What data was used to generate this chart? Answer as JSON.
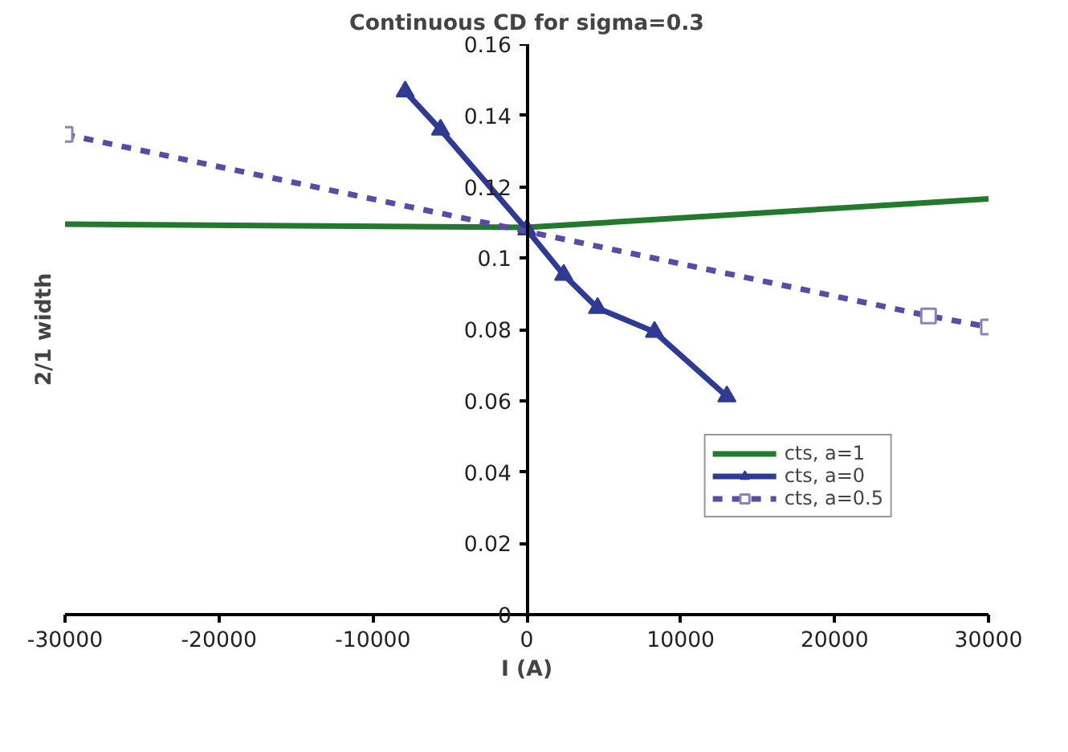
{
  "chart_data": {
    "type": "line",
    "title": "Continuous CD for sigma=0.3",
    "xlabel": "I (A)",
    "ylabel": "2/1 width",
    "xlim": [
      -30000,
      30000
    ],
    "xticks": [
      -30000,
      -20000,
      -10000,
      0,
      10000,
      20000,
      30000
    ],
    "ylim": [
      0,
      0.16
    ],
    "yticks": [
      0,
      0.02,
      0.04,
      0.06,
      0.08,
      0.1,
      0.12,
      0.14,
      0.16
    ],
    "grid": false,
    "legend": "bottom right",
    "series": [
      {
        "name": "cts, a=1",
        "color": "#237a2e",
        "x": [
          -30000,
          0,
          30000
        ],
        "values": [
          0.1095,
          0.1086,
          0.1166
        ],
        "marker": "none",
        "line_style": "solid"
      },
      {
        "name": "cts, a=0",
        "color": "#2e3a94",
        "x": [
          -7900,
          -5600,
          0,
          2400,
          4600,
          8300,
          13000
        ],
        "values": [
          0.1467,
          0.136,
          0.108,
          0.0953,
          0.086,
          0.0793,
          0.0612
        ],
        "marker": "triangle",
        "line_style": "solid"
      },
      {
        "name": "cts, a=0.5",
        "color": "#5b4aa8",
        "x": [
          -30000,
          26100,
          30000
        ],
        "values": [
          0.1347,
          0.0838,
          0.0807
        ],
        "marker": "square",
        "line_style": "dashed"
      }
    ]
  }
}
